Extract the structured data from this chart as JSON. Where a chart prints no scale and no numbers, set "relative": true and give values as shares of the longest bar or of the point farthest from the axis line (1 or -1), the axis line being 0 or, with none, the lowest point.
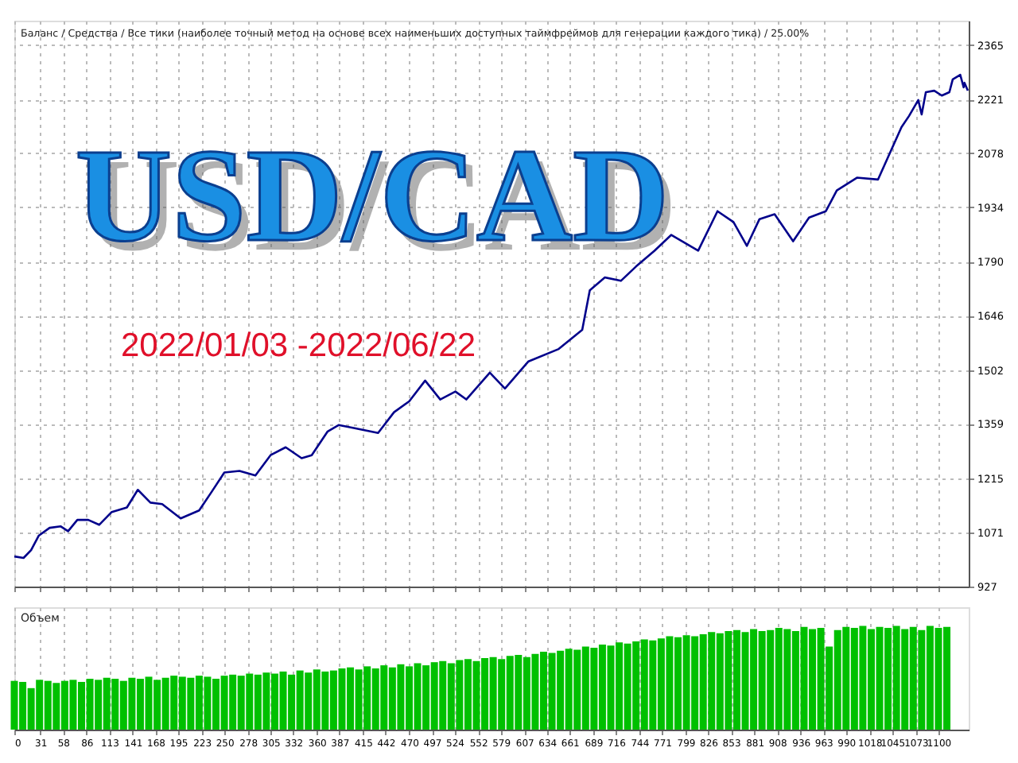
{
  "chart_data": [
    {
      "type": "line",
      "title": "USD/CAD",
      "subtitle": "2022/01/03  -2022/06/22",
      "annotations": [
        "Баланс / Средства / Все тики (наиболее точный метод на основе всех наименьших доступных таймфреймов для генерации каждого тика) / 25.00%"
      ],
      "x": [
        0,
        11,
        20,
        29,
        42,
        55,
        64,
        75,
        88,
        101,
        116,
        134,
        147,
        162,
        176,
        198,
        220,
        235,
        250,
        268,
        287,
        305,
        323,
        342,
        354,
        373,
        386,
        404,
        433,
        452,
        470,
        489,
        507,
        525,
        538,
        566,
        584,
        612,
        648,
        676,
        685,
        703,
        722,
        740,
        762,
        782,
        814,
        837,
        856,
        872,
        887,
        905,
        927,
        946,
        966,
        979,
        1003,
        1028,
        1056,
        1065,
        1076,
        1080,
        1085,
        1095,
        1104,
        1113,
        1117,
        1126,
        1130,
        1131,
        1135
      ],
      "series": [
        {
          "color": "#00008b",
          "values": [
            1007,
            1003,
            1024,
            1062,
            1083,
            1087,
            1074,
            1104,
            1104,
            1091,
            1125,
            1137,
            1184,
            1150,
            1146,
            1108,
            1129,
            1179,
            1230,
            1234,
            1222,
            1276,
            1297,
            1268,
            1276,
            1339,
            1356,
            1348,
            1335,
            1390,
            1419,
            1474,
            1424,
            1445,
            1424,
            1495,
            1453,
            1525,
            1558,
            1609,
            1714,
            1748,
            1739,
            1777,
            1819,
            1861,
            1819,
            1924,
            1895,
            1832,
            1903,
            1916,
            1844,
            1907,
            1924,
            1979,
            2013,
            2008,
            2147,
            2177,
            2219,
            2181,
            2240,
            2244,
            2231,
            2240,
            2274,
            2286,
            2253,
            2265,
            2244
          ]
        }
      ],
      "xlim": [
        0,
        1136
      ],
      "xticks": [
        {
          "value": 0,
          "label": null
        },
        {
          "value": 31,
          "label": null
        },
        {
          "value": 58,
          "label": null
        },
        {
          "value": 86,
          "label": null
        },
        {
          "value": 113,
          "label": null
        },
        {
          "value": 141,
          "label": null
        },
        {
          "value": 168,
          "label": null
        },
        {
          "value": 195,
          "label": null
        },
        {
          "value": 223,
          "label": null
        },
        {
          "value": 250,
          "label": null
        },
        {
          "value": 278,
          "label": null
        },
        {
          "value": 305,
          "label": null
        },
        {
          "value": 332,
          "label": null
        },
        {
          "value": 360,
          "label": null
        },
        {
          "value": 387,
          "label": null
        },
        {
          "value": 415,
          "label": null
        },
        {
          "value": 442,
          "label": null
        },
        {
          "value": 470,
          "label": null
        },
        {
          "value": 497,
          "label": null
        },
        {
          "value": 524,
          "label": null
        },
        {
          "value": 552,
          "label": null
        },
        {
          "value": 579,
          "label": null
        },
        {
          "value": 607,
          "label": null
        },
        {
          "value": 634,
          "label": null
        },
        {
          "value": 661,
          "label": null
        },
        {
          "value": 689,
          "label": null
        },
        {
          "value": 716,
          "label": null
        },
        {
          "value": 744,
          "label": null
        },
        {
          "value": 771,
          "label": null
        },
        {
          "value": 799,
          "label": null
        },
        {
          "value": 826,
          "label": null
        },
        {
          "value": 853,
          "label": null
        },
        {
          "value": 881,
          "label": null
        },
        {
          "value": 908,
          "label": null
        },
        {
          "value": 936,
          "label": null
        },
        {
          "value": 963,
          "label": null
        },
        {
          "value": 990,
          "label": null
        },
        {
          "value": 1018,
          "label": null
        },
        {
          "value": 1045,
          "label": null
        },
        {
          "value": 1073,
          "label": null
        },
        {
          "value": 1100,
          "label": null
        }
      ],
      "ylim": [
        927,
        2430
      ],
      "yticks": [
        927,
        1071,
        1215,
        1359,
        1502,
        1646,
        1790,
        1934,
        2078,
        2221,
        2365
      ],
      "grid": true,
      "tick_labels": "y"
    },
    {
      "type": "bar",
      "title": "Объем",
      "relative": true,
      "color": "#00c000",
      "x": [
        0,
        10,
        20,
        30,
        40,
        50,
        60,
        70,
        80,
        90,
        100,
        110,
        120,
        130,
        140,
        150,
        160,
        170,
        180,
        190,
        200,
        210,
        220,
        230,
        240,
        250,
        260,
        270,
        280,
        290,
        300,
        310,
        320,
        330,
        340,
        350,
        360,
        370,
        380,
        390,
        400,
        410,
        420,
        430,
        440,
        450,
        460,
        470,
        480,
        490,
        500,
        510,
        520,
        530,
        540,
        550,
        560,
        570,
        580,
        590,
        600,
        610,
        620,
        630,
        640,
        650,
        660,
        670,
        680,
        690,
        700,
        710,
        720,
        730,
        740,
        750,
        760,
        770,
        780,
        790,
        800,
        810,
        820,
        830,
        840,
        850,
        860,
        870,
        880,
        890,
        900,
        910,
        920,
        930,
        940,
        950,
        960,
        970,
        980,
        990,
        1000,
        1010,
        1020,
        1030,
        1040,
        1050,
        1060,
        1070,
        1080,
        1090,
        1100,
        1110
      ],
      "values": [
        0.47,
        0.46,
        0.4,
        0.48,
        0.47,
        0.45,
        0.47,
        0.48,
        0.46,
        0.49,
        0.48,
        0.5,
        0.49,
        0.47,
        0.5,
        0.49,
        0.51,
        0.48,
        0.5,
        0.52,
        0.51,
        0.5,
        0.52,
        0.51,
        0.49,
        0.52,
        0.53,
        0.52,
        0.54,
        0.53,
        0.55,
        0.54,
        0.56,
        0.53,
        0.57,
        0.55,
        0.58,
        0.56,
        0.57,
        0.59,
        0.6,
        0.58,
        0.61,
        0.59,
        0.62,
        0.6,
        0.63,
        0.61,
        0.64,
        0.62,
        0.65,
        0.66,
        0.64,
        0.67,
        0.68,
        0.66,
        0.69,
        0.7,
        0.68,
        0.71,
        0.72,
        0.7,
        0.73,
        0.75,
        0.74,
        0.76,
        0.78,
        0.77,
        0.8,
        0.79,
        0.82,
        0.81,
        0.84,
        0.83,
        0.85,
        0.87,
        0.86,
        0.88,
        0.9,
        0.89,
        0.91,
        0.9,
        0.92,
        0.94,
        0.93,
        0.95,
        0.96,
        0.94,
        0.97,
        0.95,
        0.96,
        0.98,
        0.97,
        0.95,
        0.99,
        0.97,
        0.98,
        0.8,
        0.96,
        0.99,
        0.98,
        1.0,
        0.97,
        0.99,
        0.98,
        1.0,
        0.97,
        0.99,
        0.96,
        1.0,
        0.98,
        0.99
      ],
      "xlim": [
        0,
        1136
      ],
      "xticks": [
        0,
        31,
        58,
        86,
        113,
        141,
        168,
        195,
        223,
        250,
        278,
        305,
        332,
        360,
        387,
        415,
        442,
        470,
        497,
        524,
        552,
        579,
        607,
        634,
        661,
        689,
        716,
        744,
        771,
        799,
        826,
        853,
        881,
        908,
        936,
        963,
        990,
        1018,
        1045,
        1073,
        1100
      ],
      "grid": "x",
      "tick_labels": "x"
    }
  ]
}
